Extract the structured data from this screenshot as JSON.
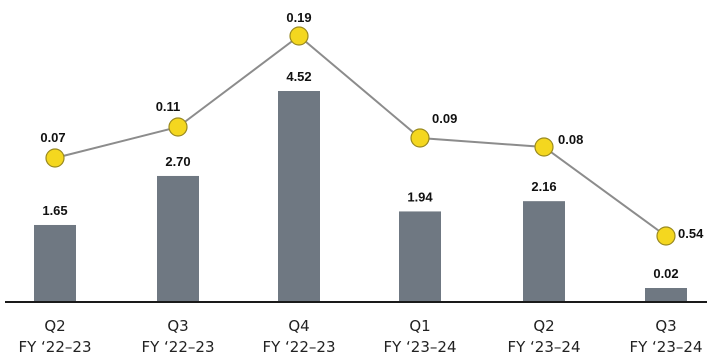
{
  "chart_data": {
    "type": "bar",
    "categories": [
      [
        "Q2",
        "FY ‘22–23"
      ],
      [
        "Q3",
        "FY ‘22–23"
      ],
      [
        "Q4",
        "FY ‘22–23"
      ],
      [
        "Q1",
        "FY ‘23–24"
      ],
      [
        "Q2",
        "FY ‘23–24"
      ],
      [
        "Q3",
        "FY ‘23–24"
      ]
    ],
    "series": [
      {
        "type": "bar",
        "values": [
          1.65,
          2.7,
          4.52,
          1.94,
          2.16,
          0.02
        ],
        "labels": [
          "1.65",
          "2.70",
          "4.52",
          "1.94",
          "2.16",
          "0.02"
        ],
        "color": "#6f7882"
      },
      {
        "type": "line",
        "values": [
          0.07,
          0.11,
          0.19,
          0.09,
          0.08,
          0.54
        ],
        "labels": [
          "0.07",
          "0.11",
          "0.19",
          "0.09",
          "0.08",
          "0.54"
        ],
        "color": "#f4d71f",
        "line_color": "#8c8c8c"
      }
    ],
    "title": "",
    "xlabel": "",
    "ylabel": "",
    "grid": false,
    "legend": "none"
  }
}
